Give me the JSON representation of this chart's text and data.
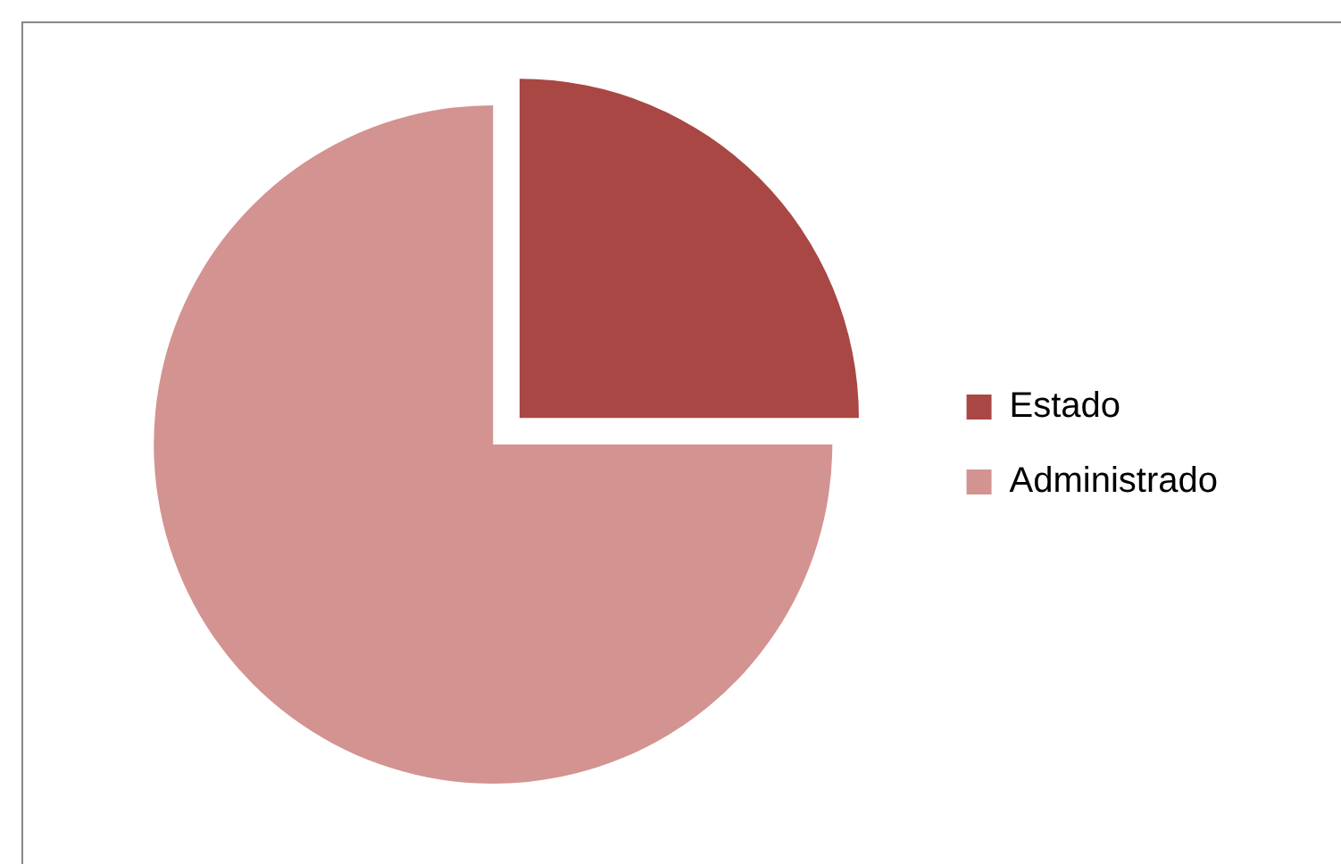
{
  "chart_data": {
    "type": "pie",
    "categories": [
      "Estado",
      "Administrado"
    ],
    "values": [
      25,
      75
    ],
    "colors": [
      "#a94744",
      "#d39391"
    ],
    "legend": "right"
  }
}
